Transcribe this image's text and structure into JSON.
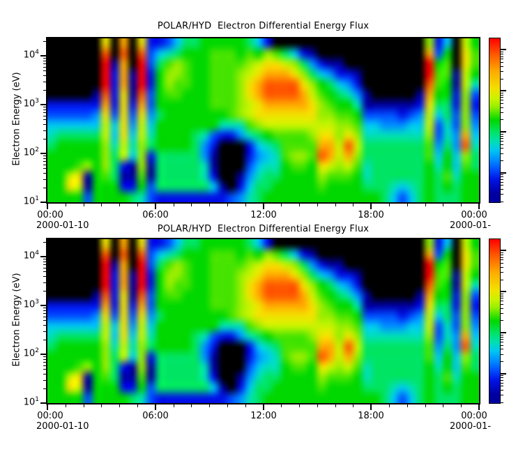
{
  "chart_data": {
    "type": "heatmap",
    "title": "POLAR/HYD  Electron Differential Energy Flux",
    "panels": [
      {
        "id": "top",
        "title": "POLAR/HYD  Electron Differential Energy Flux"
      },
      {
        "id": "bottom",
        "title": "POLAR/HYD  Electron Differential Energy Flux"
      }
    ],
    "panels_note": "two identical spectrogram panels showing the same data",
    "y_axis": {
      "label": "Electron Energy (eV)",
      "scale": "log",
      "range_log10_ev": [
        1.0,
        4.357
      ],
      "ticks": [
        {
          "log10": 4,
          "base": "10",
          "exp": "4"
        },
        {
          "log10": 3,
          "base": "10",
          "exp": "3"
        },
        {
          "log10": 2,
          "base": "10",
          "exp": "2"
        },
        {
          "log10": 1,
          "base": "10",
          "exp": "1"
        }
      ]
    },
    "x_axis": {
      "start_date": "2000-01-10",
      "end_date_label": "2000-01-",
      "range_hours": [
        0,
        24
      ],
      "minor_tick_step_hours": 1,
      "ticks": [
        {
          "hour": 0,
          "label": "00:00"
        },
        {
          "hour": 6,
          "label": "06:00"
        },
        {
          "hour": 12,
          "label": "12:00"
        },
        {
          "hour": 18,
          "label": "18:00"
        },
        {
          "hour": 24,
          "label": "00:00"
        }
      ]
    },
    "colorbar": {
      "orientation": "vertical",
      "top": "max flux (red)",
      "bottom": "min flux (dark blue)",
      "major_tick_fracs_from_top": [
        0.07,
        0.32,
        0.57,
        0.82
      ],
      "minor_ticks_per_decade": [
        2,
        3,
        4,
        5,
        6,
        7,
        8,
        9
      ]
    },
    "colormap": [
      "#000000",
      "#0000a0",
      "#0014e6",
      "#0050ff",
      "#0090ff",
      "#00c8f0",
      "#00e0b4",
      "#00e464",
      "#00d800",
      "#46e400",
      "#96ee00",
      "#c8f400",
      "#f2e200",
      "#ffaa00",
      "#ff5a00",
      "#ff0000"
    ],
    "flux_encoding": "one hex digit per cell: 0 = no flux (black) through f = maximum flux (red); relative differential energy flux level",
    "grid": {
      "cols": 48,
      "rows": 16,
      "col_duration_hours": 0.5,
      "row_order": "top (highest energy ~2e4 eV) to bottom (lowest energy ~10 eV)",
      "columns": [
        "0000002356788888",
        "0000002357888888",
        "0000002357888bc8",
        "0000002357889cb8",
        "000000235788a113",
        "0000012457888888",
        "cefffedcbbaaa988",
        "0012222355677788",
        "dedddcccccbb2128",
        "0001112345651127",
        "cefffedcbbaaa986",
        "2332233456721133",
        "2578888788877772",
        "369aa98888877772",
        "57aa998888877772",
        "7899988888877772",
        "7888888887777772",
        "8888888886446672",
        "8999999883211252",
        "8999999862000012",
        "8999999962000003",
        "889aaaaa64000124",
        "79abccbb96223456",
        "58bcddcca7545677",
        "2acdeedcb8656778",
        "09cdeedcb9766788",
        "07bdeedcb9998888",
        "05aceedcb99a9888",
        "027acddcb99a9888",
        "0147abccba998888",
        "002589aabcdeca98",
        "0014789abcddb988",
        "00125789aabba988",
        "00024689acedb988",
        "000124689aba9888",
        "0000011356776678",
        "0000001356777778",
        "0000001346777777",
        "0000001346777765",
        "0000001246777753",
        "0000001356777765",
        "0000012456777777",
        "adffedcbba998888",
        "2389987533456777",
        "5899887766788987",
        "0001122334455677",
        "bccbbaaaadea9888",
        "8998632345677888"
      ]
    }
  }
}
